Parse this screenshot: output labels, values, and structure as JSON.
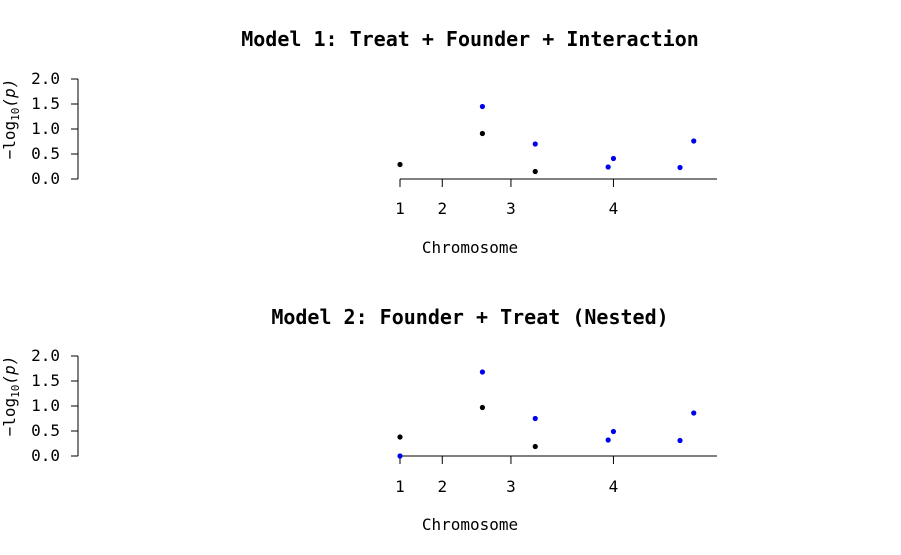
{
  "chart_data": [
    {
      "type": "scatter",
      "title": "Model 1: Treat + Founder + Interaction",
      "xlabel": "Chromosome",
      "ylabel_main": "−log",
      "ylabel_sub": "10",
      "ylabel_var": "(p)",
      "ylim": [
        0,
        2
      ],
      "yticks": [
        "0.0",
        "0.5",
        "1.0",
        "1.5",
        "2.0"
      ],
      "xlim": [
        1,
        4
      ],
      "xticks": [
        {
          "value": 1,
          "label": "1"
        },
        {
          "value": 1.4,
          "label": "2"
        },
        {
          "value": 2.05,
          "label": "3"
        },
        {
          "value": 3.02,
          "label": "4"
        }
      ],
      "grid": false,
      "series": [
        {
          "color": "#000000",
          "points": [
            {
              "x": 1.0,
              "y": 0.29
            },
            {
              "x": 1.78,
              "y": 0.91
            },
            {
              "x": 2.28,
              "y": 0.15
            }
          ]
        },
        {
          "color": "#0000ee",
          "points": [
            {
              "x": 1.78,
              "y": 1.45
            },
            {
              "x": 2.28,
              "y": 0.7
            },
            {
              "x": 2.97,
              "y": 0.24
            },
            {
              "x": 3.02,
              "y": 0.41
            },
            {
              "x": 3.65,
              "y": 0.23
            },
            {
              "x": 3.78,
              "y": 0.76
            }
          ]
        }
      ]
    },
    {
      "type": "scatter",
      "title": "Model 2: Founder + Treat (Nested)",
      "xlabel": "Chromosome",
      "ylabel_main": "−log",
      "ylabel_sub": "10",
      "ylabel_var": "(p)",
      "ylim": [
        0,
        2
      ],
      "yticks": [
        "0.0",
        "0.5",
        "1.0",
        "1.5",
        "2.0"
      ],
      "xlim": [
        1,
        4
      ],
      "xticks": [
        {
          "value": 1,
          "label": "1"
        },
        {
          "value": 1.4,
          "label": "2"
        },
        {
          "value": 2.05,
          "label": "3"
        },
        {
          "value": 3.02,
          "label": "4"
        }
      ],
      "grid": false,
      "series": [
        {
          "color": "#000000",
          "points": [
            {
              "x": 1.0,
              "y": 0.38
            },
            {
              "x": 1.78,
              "y": 0.97
            },
            {
              "x": 2.28,
              "y": 0.19
            }
          ]
        },
        {
          "color": "#0000ee",
          "points": [
            {
              "x": 1.0,
              "y": 0.0
            },
            {
              "x": 1.78,
              "y": 1.68
            },
            {
              "x": 2.28,
              "y": 0.75
            },
            {
              "x": 2.97,
              "y": 0.32
            },
            {
              "x": 3.02,
              "y": 0.49
            },
            {
              "x": 3.65,
              "y": 0.31
            },
            {
              "x": 3.78,
              "y": 0.86
            }
          ]
        }
      ]
    }
  ]
}
